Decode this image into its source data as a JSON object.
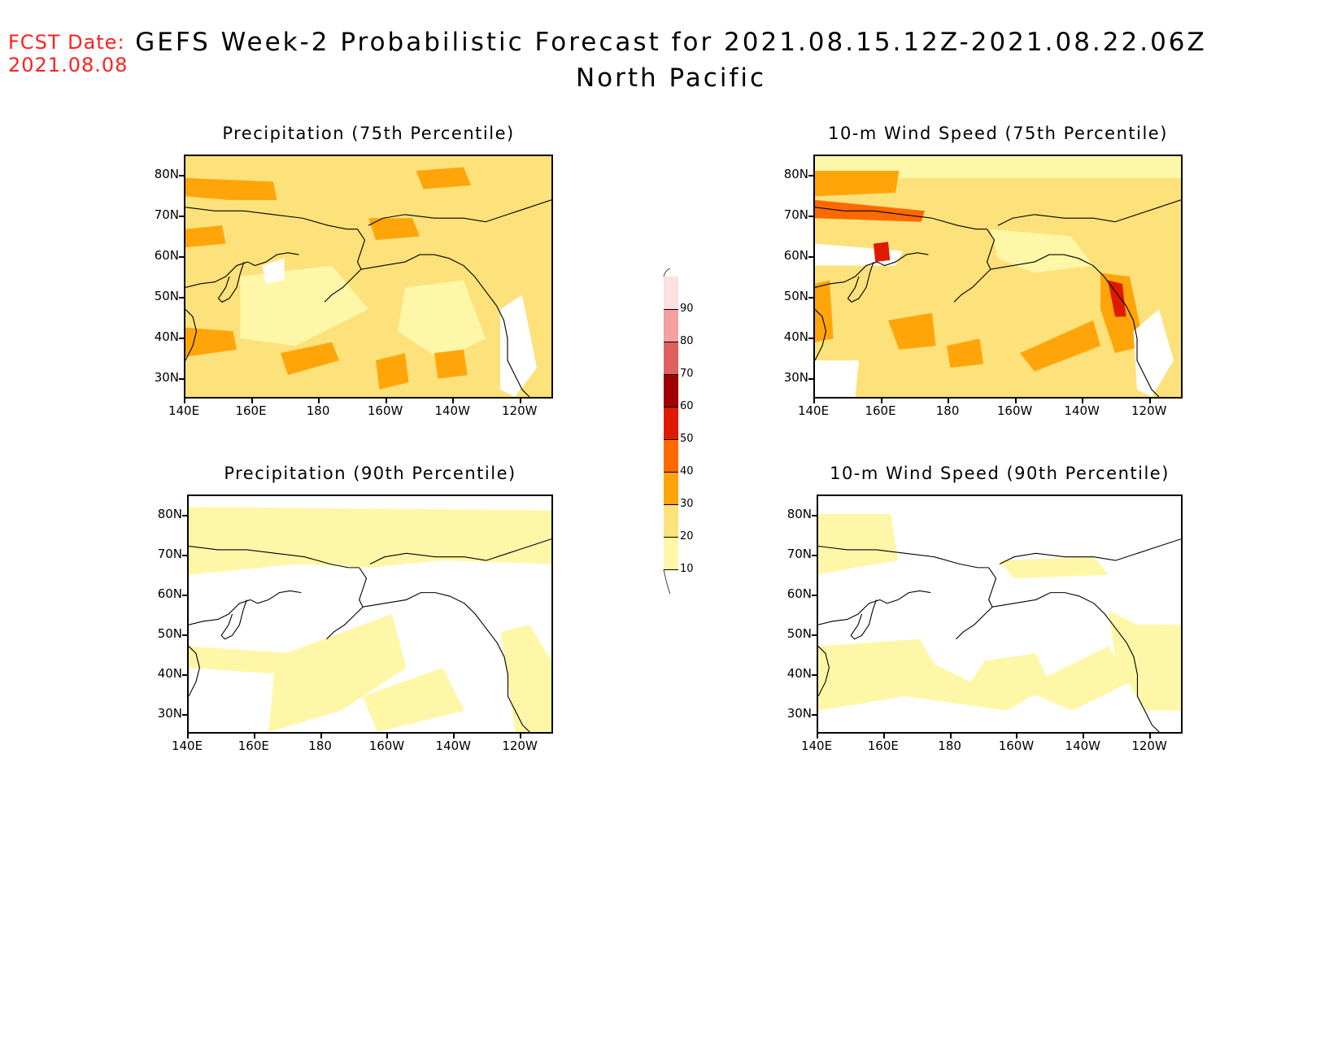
{
  "header": {
    "fcst_label": "FCST Date:",
    "fcst_date": "2021.08.08",
    "title": "GEFS Week-2 Probabilistic Forecast for 2021.08.15.12Z-2021.08.22.06Z",
    "subtitle": "North Pacific"
  },
  "axes": {
    "lat_ticks": [
      "80N",
      "70N",
      "60N",
      "50N",
      "40N",
      "30N"
    ],
    "lon_ticks": [
      "140E",
      "160E",
      "180",
      "160W",
      "140W",
      "120W"
    ]
  },
  "panels": [
    {
      "title": "Precipitation (75th Percentile)",
      "variable": "precipitation",
      "percentile": 75
    },
    {
      "title": "10-m Wind Speed (75th Percentile)",
      "variable": "wind_speed_10m",
      "percentile": 75
    },
    {
      "title": "Precipitation (90th Percentile)",
      "variable": "precipitation",
      "percentile": 90
    },
    {
      "title": "10-m Wind Speed (90th Percentile)",
      "variable": "wind_speed_10m",
      "percentile": 90
    }
  ],
  "colorbar": {
    "levels": [
      "10",
      "20",
      "30",
      "40",
      "50",
      "60",
      "70",
      "80",
      "90"
    ],
    "colors": [
      "#fff7a8",
      "#fde17a",
      "#ffa50a",
      "#ff6a00",
      "#e01a00",
      "#a00000",
      "#e06060",
      "#f4a0a0",
      "#fde0e0"
    ]
  }
}
